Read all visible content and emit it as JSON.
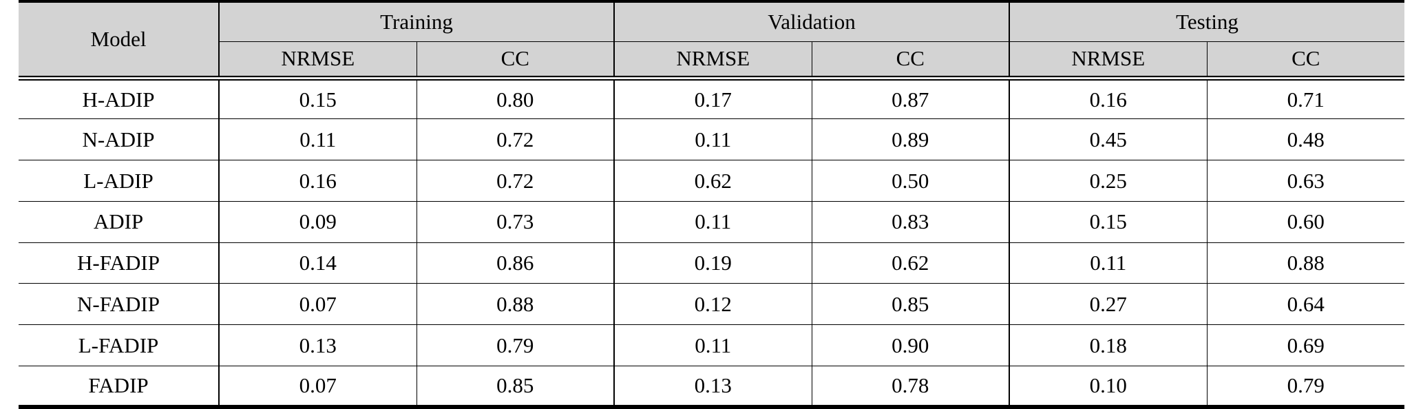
{
  "table": {
    "model_header": "Model",
    "sections": [
      {
        "label": "Training",
        "columns": [
          "NRMSE",
          "CC"
        ]
      },
      {
        "label": "Validation",
        "columns": [
          "NRMSE",
          "CC"
        ]
      },
      {
        "label": "Testing",
        "columns": [
          "NRMSE",
          "CC"
        ]
      }
    ],
    "rows": [
      {
        "model": "H-ADIP",
        "values": [
          "0.15",
          "0.80",
          "0.17",
          "0.87",
          "0.16",
          "0.71"
        ]
      },
      {
        "model": "N-ADIP",
        "values": [
          "0.11",
          "0.72",
          "0.11",
          "0.89",
          "0.45",
          "0.48"
        ]
      },
      {
        "model": "L-ADIP",
        "values": [
          "0.16",
          "0.72",
          "0.62",
          "0.50",
          "0.25",
          "0.63"
        ]
      },
      {
        "model": "ADIP",
        "values": [
          "0.09",
          "0.73",
          "0.11",
          "0.83",
          "0.15",
          "0.60"
        ]
      },
      {
        "model": "H-FADIP",
        "values": [
          "0.14",
          "0.86",
          "0.19",
          "0.62",
          "0.11",
          "0.88"
        ]
      },
      {
        "model": "N-FADIP",
        "values": [
          "0.07",
          "0.88",
          "0.12",
          "0.85",
          "0.27",
          "0.64"
        ]
      },
      {
        "model": "L-FADIP",
        "values": [
          "0.13",
          "0.79",
          "0.11",
          "0.90",
          "0.18",
          "0.69"
        ]
      },
      {
        "model": "FADIP",
        "values": [
          "0.07",
          "0.85",
          "0.13",
          "0.78",
          "0.10",
          "0.79"
        ]
      }
    ]
  },
  "colors": {
    "header_background": "#d3d3d3",
    "border": "#000000",
    "page_background": "#ffffff",
    "text": "#000000"
  }
}
